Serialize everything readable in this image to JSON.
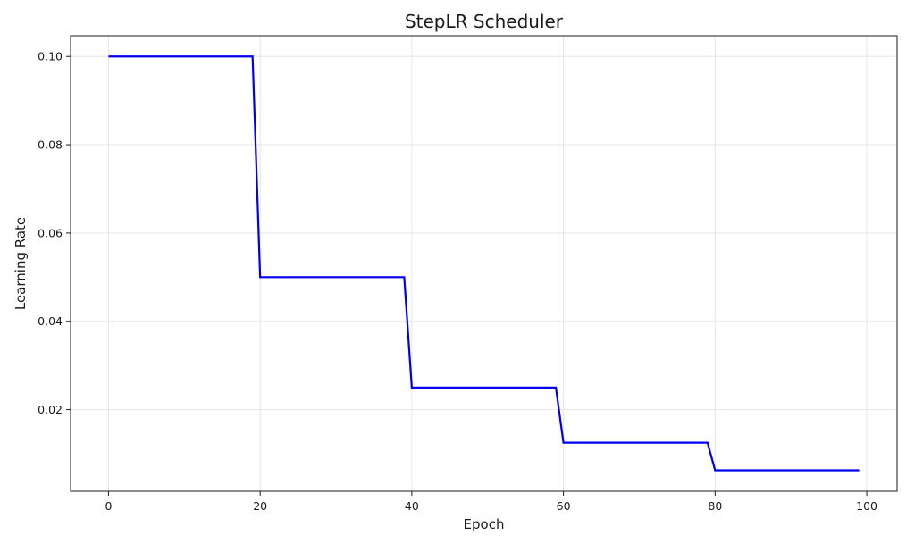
{
  "chart_data": {
    "type": "line",
    "title": "StepLR Scheduler",
    "xlabel": "Epoch",
    "ylabel": "Learning Rate",
    "xlim": [
      -5,
      104
    ],
    "ylim": [
      0.0015,
      0.1047
    ],
    "xticks": [
      0,
      20,
      40,
      60,
      80,
      100
    ],
    "yticks": [
      0.02,
      0.04,
      0.06,
      0.08,
      0.1
    ],
    "xtick_labels": [
      "0",
      "20",
      "40",
      "60",
      "80",
      "100"
    ],
    "ytick_labels": [
      "0.02",
      "0.04",
      "0.06",
      "0.08",
      "0.10"
    ],
    "grid": true,
    "series": [
      {
        "color": "#0000ee",
        "x": [
          0,
          19,
          20,
          39,
          40,
          59,
          60,
          79,
          80,
          99
        ],
        "y": [
          0.1,
          0.1,
          0.05,
          0.05,
          0.025,
          0.025,
          0.0125,
          0.0125,
          0.00625,
          0.00625
        ]
      }
    ]
  }
}
